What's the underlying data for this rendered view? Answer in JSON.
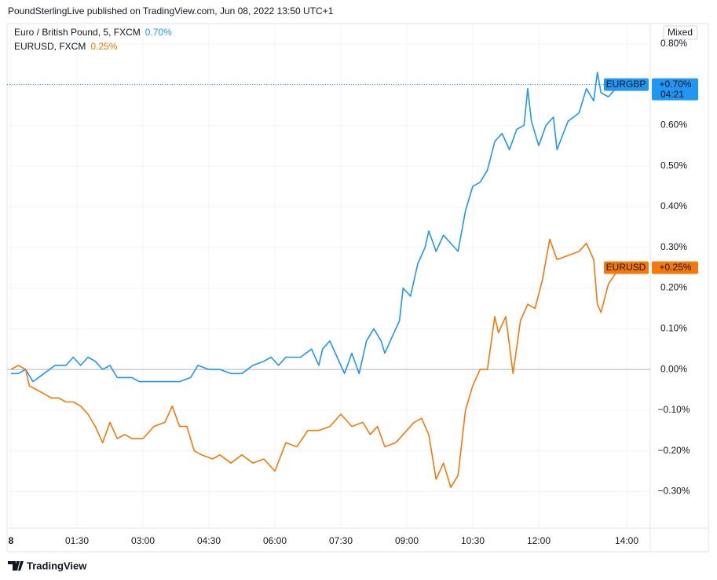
{
  "chart_data": {
    "type": "line",
    "title": "PoundSterlingLive published on TradingView.com, Jun 08, 2022 13:50 UTC+1",
    "brand": "TradingView",
    "scale_button": "Mixed",
    "grid": true,
    "xlim": [
      "00:00",
      "14:30"
    ],
    "xticks": [
      {
        "value": "00:00",
        "label": "8"
      },
      "01:30",
      "03:00",
      "04:30",
      "06:00",
      "07:30",
      "09:00",
      "10:30",
      "12:00",
      "14:00"
    ],
    "ylim": [
      -0.39,
      0.85
    ],
    "yticks": [
      {
        "value": -0.3,
        "label": "−0.30%"
      },
      {
        "value": -0.2,
        "label": "−0.20%"
      },
      {
        "value": -0.1,
        "label": "−0.10%"
      },
      {
        "value": 0,
        "label": "0.00%"
      },
      {
        "value": 0.1,
        "label": "0.10%"
      },
      {
        "value": 0.2,
        "label": "0.20%"
      },
      {
        "value": 0.3,
        "label": "0.30%"
      },
      {
        "value": 0.4,
        "label": "0.40%"
      },
      {
        "value": 0.5,
        "label": "0.50%"
      },
      {
        "value": 0.6,
        "label": "0.60%"
      },
      {
        "value": 0.7,
        "label": "0.70%"
      },
      {
        "value": 0.8,
        "label": "0.80%"
      }
    ],
    "series": [
      {
        "name": "Euro / British Pound, 5, FXCM",
        "legend_label": "0.70%",
        "symbol": "EURGBP",
        "price_label": "+0.70%",
        "countdown": "04:21",
        "color": "#2196f3",
        "x": [
          "00:00",
          "00:10",
          "00:20",
          "00:30",
          "00:45",
          "01:00",
          "01:15",
          "01:25",
          "01:35",
          "01:45",
          "01:55",
          "02:05",
          "02:15",
          "02:25",
          "02:45",
          "02:55",
          "03:15",
          "03:35",
          "03:50",
          "04:05",
          "04:15",
          "04:30",
          "04:45",
          "05:00",
          "05:15",
          "05:30",
          "05:45",
          "05:55",
          "06:05",
          "06:15",
          "06:35",
          "06:50",
          "07:00",
          "07:05",
          "07:15",
          "07:25",
          "07:35",
          "07:45",
          "07:55",
          "08:05",
          "08:15",
          "08:25",
          "08:30",
          "08:40",
          "08:50",
          "08:55",
          "09:05",
          "09:15",
          "09:25",
          "09:30",
          "09:40",
          "09:50",
          "10:00",
          "10:10",
          "10:20",
          "10:30",
          "10:40",
          "10:50",
          "11:00",
          "11:10",
          "11:20",
          "11:30",
          "11:40",
          "11:45",
          "11:50",
          "12:00",
          "12:10",
          "12:20",
          "12:25",
          "12:40",
          "12:55",
          "13:05",
          "13:15",
          "13:20",
          "13:25",
          "13:35",
          "13:50"
        ],
        "values": [
          -0.01,
          -0.01,
          0.0,
          -0.03,
          -0.01,
          0.01,
          0.01,
          0.03,
          0.01,
          0.03,
          0.02,
          0.0,
          0.01,
          -0.02,
          -0.02,
          -0.03,
          -0.03,
          -0.03,
          -0.03,
          -0.02,
          0.01,
          0.0,
          0.0,
          -0.01,
          -0.01,
          0.01,
          0.02,
          0.03,
          0.01,
          0.03,
          0.03,
          0.05,
          0.01,
          0.05,
          0.07,
          0.03,
          -0.01,
          0.04,
          -0.01,
          0.07,
          0.1,
          0.07,
          0.04,
          0.08,
          0.12,
          0.2,
          0.18,
          0.26,
          0.3,
          0.34,
          0.29,
          0.33,
          0.31,
          0.29,
          0.39,
          0.45,
          0.46,
          0.49,
          0.56,
          0.58,
          0.54,
          0.59,
          0.6,
          0.69,
          0.61,
          0.55,
          0.6,
          0.62,
          0.54,
          0.61,
          0.63,
          0.69,
          0.66,
          0.73,
          0.68,
          0.67,
          0.7
        ]
      },
      {
        "name": "EURUSD, FXCM",
        "legend_label": "0.25%",
        "symbol": "EURUSD",
        "price_label": "+0.25%",
        "color": "#f5780a",
        "x": [
          "00:00",
          "00:10",
          "00:20",
          "00:25",
          "00:35",
          "00:45",
          "00:55",
          "01:05",
          "01:15",
          "01:25",
          "01:35",
          "01:45",
          "01:55",
          "02:05",
          "02:15",
          "02:25",
          "02:35",
          "02:45",
          "03:00",
          "03:15",
          "03:30",
          "03:40",
          "03:50",
          "04:00",
          "04:10",
          "04:20",
          "04:35",
          "04:45",
          "05:00",
          "05:15",
          "05:30",
          "05:45",
          "06:00",
          "06:15",
          "06:30",
          "06:45",
          "07:00",
          "07:15",
          "07:30",
          "07:45",
          "08:00",
          "08:10",
          "08:20",
          "08:30",
          "08:45",
          "09:00",
          "09:10",
          "09:20",
          "09:30",
          "09:40",
          "09:50",
          "10:00",
          "10:10",
          "10:20",
          "10:30",
          "10:40",
          "10:50",
          "11:00",
          "11:05",
          "11:15",
          "11:25",
          "11:35",
          "11:45",
          "11:55",
          "12:05",
          "12:15",
          "12:25",
          "12:40",
          "12:55",
          "13:05",
          "13:15",
          "13:20",
          "13:25",
          "13:35",
          "13:50"
        ],
        "values": [
          0.0,
          0.01,
          0.0,
          -0.04,
          -0.05,
          -0.06,
          -0.07,
          -0.07,
          -0.08,
          -0.08,
          -0.09,
          -0.11,
          -0.14,
          -0.18,
          -0.13,
          -0.17,
          -0.16,
          -0.17,
          -0.17,
          -0.14,
          -0.13,
          -0.09,
          -0.14,
          -0.14,
          -0.2,
          -0.21,
          -0.22,
          -0.21,
          -0.23,
          -0.21,
          -0.23,
          -0.22,
          -0.25,
          -0.18,
          -0.19,
          -0.15,
          -0.15,
          -0.14,
          -0.11,
          -0.14,
          -0.13,
          -0.16,
          -0.14,
          -0.19,
          -0.18,
          -0.15,
          -0.13,
          -0.12,
          -0.16,
          -0.27,
          -0.23,
          -0.29,
          -0.26,
          -0.1,
          -0.04,
          0.0,
          0.0,
          0.13,
          0.09,
          0.13,
          -0.01,
          0.12,
          0.16,
          0.15,
          0.22,
          0.32,
          0.27,
          0.28,
          0.29,
          0.31,
          0.27,
          0.16,
          0.14,
          0.21,
          0.25
        ]
      }
    ]
  }
}
